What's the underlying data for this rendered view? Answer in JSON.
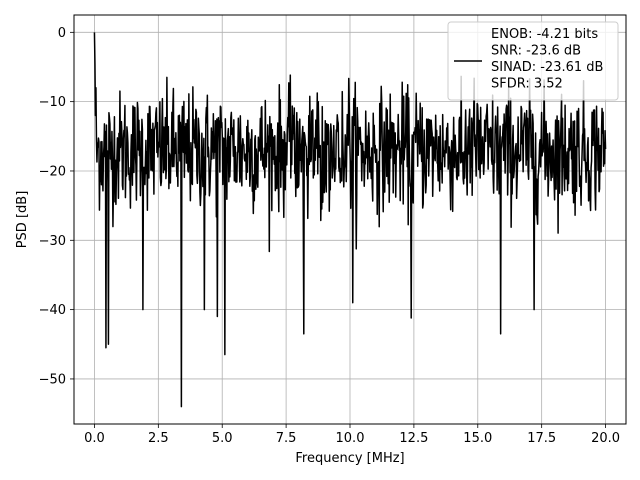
{
  "chart_data": {
    "type": "line",
    "xlabel": "Frequency [MHz]",
    "ylabel": "PSD [dB]",
    "xlim": [
      -0.8,
      20.8
    ],
    "ylim": [
      -56.5,
      2.5
    ],
    "xticks": [
      0.0,
      2.5,
      5.0,
      7.5,
      10.0,
      12.5,
      15.0,
      17.5,
      20.0
    ],
    "xtick_labels": [
      "0.0",
      "2.5",
      "5.0",
      "7.5",
      "10.0",
      "12.5",
      "15.0",
      "17.5",
      "20.0"
    ],
    "yticks": [
      0,
      -10,
      -20,
      -30,
      -40,
      -50
    ],
    "ytick_labels": [
      "0",
      "−10",
      "−20",
      "−30",
      "−40",
      "−50"
    ],
    "grid": true,
    "legend": {
      "placement": "top-right",
      "entries": [
        "ENOB: -4.21 bits",
        "SNR: -23.6 dB",
        "SINAD: -23.61 dB",
        "SFDR: 3.52"
      ]
    },
    "series": [
      {
        "color": "#000000",
        "x_start": 0.0,
        "x_end": 20.0,
        "points": 1024,
        "peak_value": 0.0,
        "noise_floor_mean": -17.0,
        "noise_upper_envelope": -6.0,
        "notable_dips": [
          {
            "x": 0.45,
            "y": -45.5
          },
          {
            "x": 0.55,
            "y": -45.0
          },
          {
            "x": 3.4,
            "y": -54.0
          },
          {
            "x": 4.8,
            "y": -41.0
          },
          {
            "x": 5.1,
            "y": -46.5
          },
          {
            "x": 8.2,
            "y": -43.5
          },
          {
            "x": 12.4,
            "y": -41.2
          },
          {
            "x": 15.9,
            "y": -43.5
          },
          {
            "x": 1.9,
            "y": -40.0
          },
          {
            "x": 4.3,
            "y": -40.0
          },
          {
            "x": 10.1,
            "y": -39.0
          },
          {
            "x": 17.2,
            "y": -40.0
          }
        ]
      }
    ]
  }
}
